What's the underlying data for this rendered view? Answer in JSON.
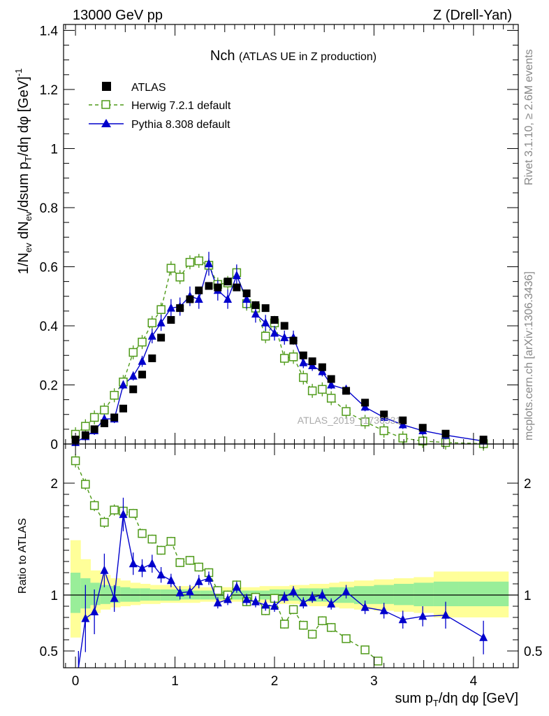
{
  "header": {
    "left": "13000 GeV pp",
    "right": "Z (Drell-Yan)"
  },
  "plot_title": {
    "main": "Nch",
    "sub": "(ATLAS UE in Z production)"
  },
  "analysis_label": "ATLAS_2019_I1736531",
  "side_labels": {
    "rivet": "Rivet 3.1.10, ≥ 2.6M events",
    "mcplots": "mcplots.cern.ch [arXiv:1306.3436]"
  },
  "colors": {
    "atlas": "#000000",
    "herwig": "#4f9a19",
    "pythia": "#0000cc",
    "band_outer": "#ffff99",
    "band_inner": "#99ee99"
  },
  "chart_data": [
    {
      "type": "scatter",
      "panel": "main",
      "ylabel": "1/N_ev dN_ev/dsum p_T/dη dφ [GeV]^-1",
      "xlim": [
        -0.12,
        4.45
      ],
      "ylim": [
        0,
        1.42
      ],
      "xticks": [
        0,
        1,
        2,
        3,
        4
      ],
      "yticks": [
        0,
        0.2,
        0.4,
        0.6,
        0.8,
        1,
        1.2,
        1.4
      ],
      "ytick_labels": [
        "0",
        "0.2",
        "0.4",
        "0.6",
        "0.8",
        "1",
        "1.2",
        "1.4"
      ],
      "legend_position": "top-left",
      "series": [
        {
          "name": "ATLAS",
          "marker": "filled-square",
          "x": [
            0.0,
            0.1,
            0.19,
            0.29,
            0.39,
            0.48,
            0.58,
            0.67,
            0.77,
            0.86,
            0.96,
            1.05,
            1.15,
            1.24,
            1.34,
            1.43,
            1.53,
            1.62,
            1.72,
            1.81,
            1.91,
            2.0,
            2.1,
            2.19,
            2.29,
            2.38,
            2.48,
            2.57,
            2.72,
            2.91,
            3.1,
            3.29,
            3.49,
            3.72,
            4.1
          ],
          "y": [
            0.015,
            0.03,
            0.05,
            0.07,
            0.09,
            0.12,
            0.185,
            0.235,
            0.29,
            0.36,
            0.42,
            0.46,
            0.49,
            0.52,
            0.535,
            0.53,
            0.55,
            0.53,
            0.51,
            0.47,
            0.46,
            0.42,
            0.4,
            0.35,
            0.3,
            0.28,
            0.26,
            0.22,
            0.18,
            0.14,
            0.1,
            0.08,
            0.055,
            0.035,
            0.015
          ]
        },
        {
          "name": "Herwig 7.2.1 default",
          "marker": "open-square",
          "line": "dashed",
          "x": [
            0.0,
            0.1,
            0.19,
            0.29,
            0.39,
            0.48,
            0.58,
            0.67,
            0.77,
            0.86,
            0.96,
            1.05,
            1.15,
            1.24,
            1.34,
            1.43,
            1.53,
            1.62,
            1.72,
            1.81,
            1.91,
            2.0,
            2.1,
            2.19,
            2.29,
            2.38,
            2.48,
            2.57,
            2.72,
            2.91,
            3.1,
            3.29,
            3.49,
            3.72,
            4.1
          ],
          "y": [
            0.033,
            0.06,
            0.09,
            0.115,
            0.165,
            0.21,
            0.31,
            0.345,
            0.41,
            0.455,
            0.595,
            0.565,
            0.615,
            0.62,
            0.605,
            0.54,
            0.545,
            0.58,
            0.475,
            0.46,
            0.365,
            0.41,
            0.29,
            0.295,
            0.225,
            0.18,
            0.185,
            0.155,
            0.11,
            0.075,
            0.045,
            0.02,
            0.01,
            0.005,
            0.001
          ]
        },
        {
          "name": "Pythia 8.308 default",
          "marker": "filled-triangle",
          "line": "solid",
          "x": [
            0.0,
            0.1,
            0.19,
            0.29,
            0.39,
            0.48,
            0.58,
            0.67,
            0.77,
            0.86,
            0.96,
            1.05,
            1.15,
            1.24,
            1.34,
            1.43,
            1.53,
            1.62,
            1.72,
            1.81,
            1.91,
            2.0,
            2.1,
            2.19,
            2.29,
            2.38,
            2.48,
            2.57,
            2.72,
            2.91,
            3.1,
            3.29,
            3.49,
            3.72,
            4.1
          ],
          "y": [
            0.005,
            0.025,
            0.045,
            0.085,
            0.085,
            0.2,
            0.23,
            0.28,
            0.365,
            0.41,
            0.46,
            0.465,
            0.5,
            0.49,
            0.61,
            0.52,
            0.49,
            0.57,
            0.49,
            0.44,
            0.41,
            0.375,
            0.36,
            0.36,
            0.275,
            0.265,
            0.245,
            0.2,
            0.185,
            0.125,
            0.09,
            0.065,
            0.045,
            0.03,
            0.01
          ]
        }
      ]
    },
    {
      "type": "line",
      "panel": "ratio",
      "ylabel": "Ratio to ATLAS",
      "xlabel": "sum p_T/dη dφ [GeV]",
      "xlim": [
        -0.12,
        4.45
      ],
      "ylim": [
        0.35,
        2.35
      ],
      "xticks": [
        0,
        1,
        2,
        3,
        4
      ],
      "xtick_labels": [
        "0",
        "1",
        "2",
        "3",
        "4"
      ],
      "yticks": [
        0.5,
        1,
        2
      ],
      "ytick_labels": [
        "0.5",
        "1",
        "2"
      ],
      "reference_line": 1,
      "uncertainty_band": {
        "x_edges": [
          -0.05,
          0.05,
          0.15,
          0.25,
          0.35,
          0.45,
          0.55,
          0.65,
          0.75,
          0.85,
          0.95,
          1.05,
          1.15,
          1.25,
          1.35,
          1.45,
          1.55,
          1.65,
          1.75,
          1.85,
          1.95,
          2.05,
          2.15,
          2.25,
          2.35,
          2.45,
          2.55,
          2.65,
          2.8,
          3.0,
          3.2,
          3.4,
          3.6,
          3.85,
          4.35
        ],
        "outer_low": [
          0.62,
          0.78,
          0.84,
          0.87,
          0.89,
          0.9,
          0.91,
          0.92,
          0.92,
          0.93,
          0.93,
          0.93,
          0.93,
          0.94,
          0.94,
          0.94,
          0.94,
          0.94,
          0.94,
          0.93,
          0.93,
          0.92,
          0.92,
          0.91,
          0.9,
          0.9,
          0.89,
          0.88,
          0.87,
          0.86,
          0.85,
          0.84,
          0.8,
          0.8
        ],
        "outer_high": [
          1.49,
          1.32,
          1.22,
          1.18,
          1.15,
          1.13,
          1.11,
          1.1,
          1.09,
          1.09,
          1.08,
          1.08,
          1.08,
          1.07,
          1.07,
          1.07,
          1.07,
          1.07,
          1.07,
          1.08,
          1.08,
          1.08,
          1.09,
          1.09,
          1.1,
          1.1,
          1.11,
          1.12,
          1.13,
          1.14,
          1.15,
          1.16,
          1.21,
          1.21
        ],
        "inner_low": [
          0.84,
          0.88,
          0.91,
          0.92,
          0.93,
          0.94,
          0.94,
          0.95,
          0.95,
          0.95,
          0.95,
          0.96,
          0.96,
          0.96,
          0.96,
          0.96,
          0.96,
          0.96,
          0.96,
          0.96,
          0.95,
          0.95,
          0.95,
          0.94,
          0.94,
          0.94,
          0.93,
          0.93,
          0.92,
          0.92,
          0.91,
          0.9,
          0.9,
          0.9
        ],
        "inner_high": [
          1.2,
          1.15,
          1.11,
          1.09,
          1.08,
          1.07,
          1.06,
          1.06,
          1.05,
          1.05,
          1.05,
          1.05,
          1.04,
          1.04,
          1.04,
          1.04,
          1.04,
          1.04,
          1.04,
          1.04,
          1.05,
          1.05,
          1.05,
          1.06,
          1.06,
          1.06,
          1.07,
          1.07,
          1.08,
          1.09,
          1.1,
          1.11,
          1.12,
          1.12
        ]
      },
      "series": [
        {
          "name": "Herwig 7.2.1 default",
          "x": [
            0.0,
            0.1,
            0.19,
            0.29,
            0.39,
            0.48,
            0.58,
            0.67,
            0.77,
            0.86,
            0.96,
            1.05,
            1.15,
            1.24,
            1.34,
            1.43,
            1.53,
            1.62,
            1.72,
            1.81,
            1.91,
            2.0,
            2.1,
            2.19,
            2.29,
            2.38,
            2.48,
            2.57,
            2.72,
            2.91,
            3.04
          ],
          "y": [
            2.2,
            1.99,
            1.8,
            1.65,
            1.76,
            1.75,
            1.73,
            1.55,
            1.5,
            1.4,
            1.48,
            1.29,
            1.31,
            1.25,
            1.2,
            1.04,
            1.0,
            1.09,
            0.94,
            0.98,
            0.86,
            0.97,
            0.74,
            0.87,
            0.73,
            0.65,
            0.77,
            0.71,
            0.61,
            0.51,
            0.41
          ],
          "err": [
            0.06,
            0.05,
            0.05,
            0.05,
            0.05,
            0.05,
            0.04,
            0.04,
            0.04,
            0.04,
            0.04,
            0.04,
            0.04,
            0.04,
            0.04,
            0.04,
            0.04,
            0.04,
            0.04,
            0.04,
            0.04,
            0.04,
            0.04,
            0.04,
            0.04,
            0.04,
            0.04,
            0.04,
            0.03,
            0.03,
            0.03
          ]
        },
        {
          "name": "Pythia 8.308 default",
          "x": [
            0.03,
            0.1,
            0.19,
            0.29,
            0.39,
            0.48,
            0.58,
            0.67,
            0.77,
            0.86,
            0.96,
            1.05,
            1.15,
            1.24,
            1.34,
            1.43,
            1.53,
            1.62,
            1.72,
            1.81,
            1.91,
            2.0,
            2.1,
            2.19,
            2.29,
            2.38,
            2.48,
            2.57,
            2.72,
            2.91,
            3.1,
            3.29,
            3.49,
            3.72,
            4.1
          ],
          "y": [
            0.2,
            0.79,
            0.85,
            1.22,
            0.97,
            1.72,
            1.28,
            1.24,
            1.28,
            1.18,
            1.13,
            1.02,
            1.03,
            1.12,
            1.15,
            0.93,
            0.96,
            1.07,
            0.96,
            0.94,
            0.91,
            0.9,
            0.98,
            1.03,
            0.93,
            0.98,
            1.0,
            0.92,
            1.03,
            0.89,
            0.86,
            0.78,
            0.81,
            0.82,
            0.62
          ],
          "err": [
            0.3,
            0.3,
            0.2,
            0.15,
            0.12,
            0.15,
            0.1,
            0.08,
            0.08,
            0.07,
            0.06,
            0.06,
            0.06,
            0.06,
            0.06,
            0.05,
            0.05,
            0.05,
            0.05,
            0.05,
            0.05,
            0.05,
            0.05,
            0.05,
            0.05,
            0.05,
            0.05,
            0.05,
            0.06,
            0.06,
            0.07,
            0.08,
            0.09,
            0.12,
            0.15
          ]
        }
      ]
    }
  ]
}
